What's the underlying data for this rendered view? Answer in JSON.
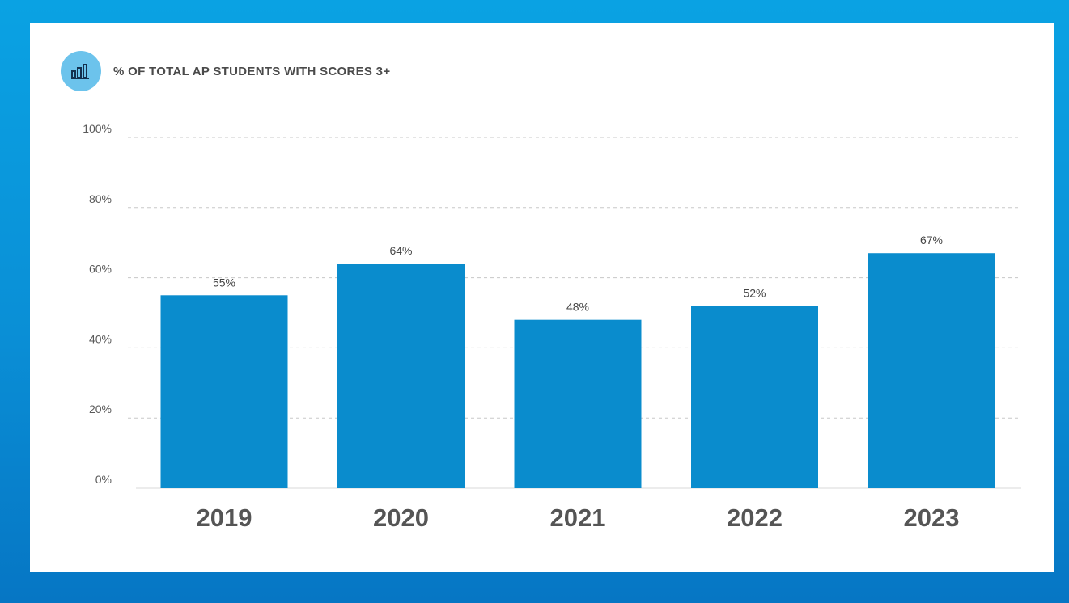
{
  "header": {
    "title": "% OF TOTAL AP STUDENTS WITH SCORES 3+",
    "icon": "bar-chart-icon"
  },
  "colors": {
    "bar": "#0a8ccd",
    "badge": "#6cc3ec",
    "icon": "#13304f",
    "grid": "#c8c8c8",
    "tick_text": "#5a5a5a",
    "category_text": "#555555",
    "value_text": "#444444"
  },
  "chart_data": {
    "type": "bar",
    "title": "% OF TOTAL AP STUDENTS WITH SCORES 3+",
    "categories": [
      "2019",
      "2020",
      "2021",
      "2022",
      "2023"
    ],
    "values": [
      55,
      64,
      48,
      52,
      67
    ],
    "value_labels": [
      "55%",
      "64%",
      "48%",
      "52%",
      "67%"
    ],
    "yticks": [
      0,
      20,
      40,
      60,
      80,
      100
    ],
    "ytick_labels": [
      "0%",
      "20%",
      "40%",
      "60%",
      "80%",
      "100%"
    ],
    "ylim": [
      0,
      100
    ],
    "xlabel": "",
    "ylabel": "",
    "grid": true,
    "legend": "none"
  }
}
